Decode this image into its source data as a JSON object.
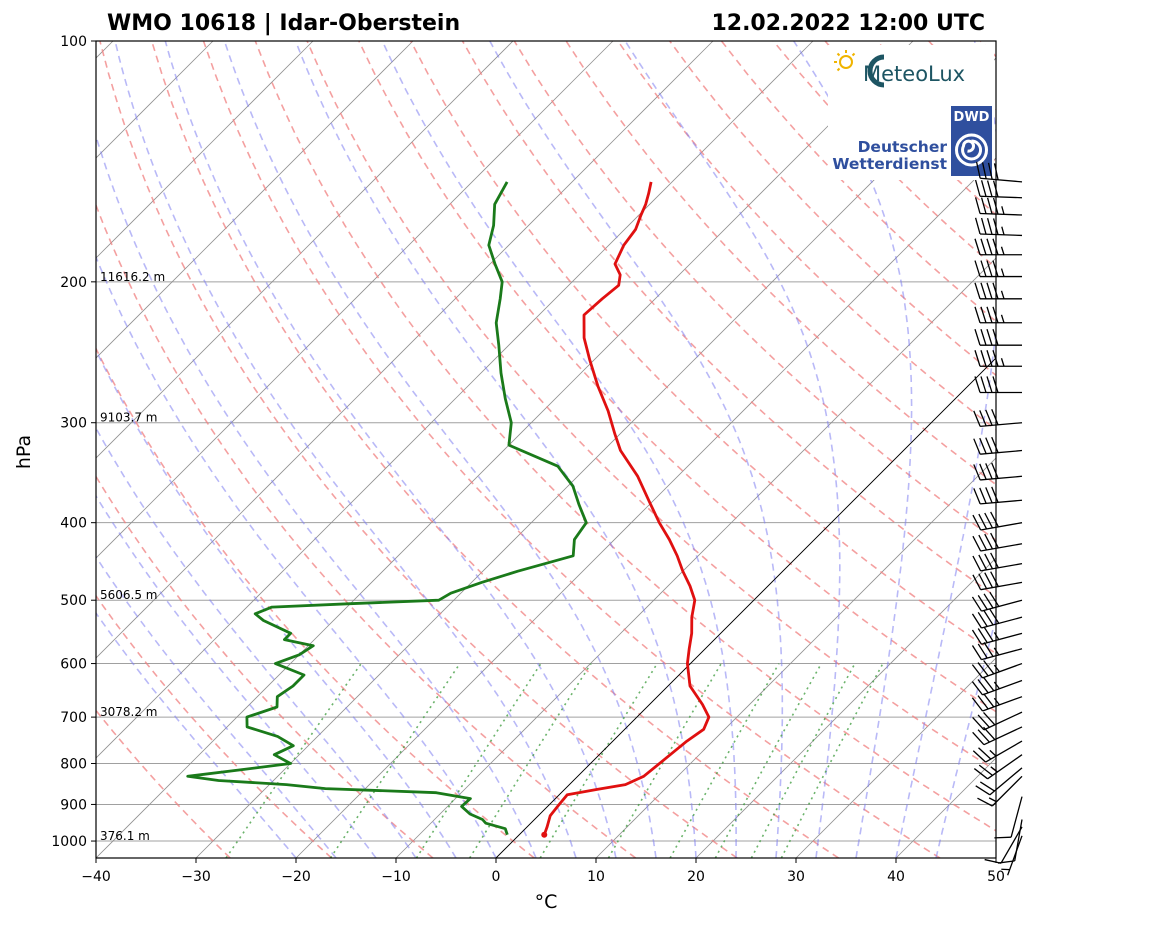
{
  "header": {
    "station": "WMO 10618 | Idar-Oberstein",
    "datetime": "12.02.2022 12:00 UTC"
  },
  "logos": {
    "meteolux": "MeteoLux",
    "dwd_badge": "DWD",
    "dwd_line1": "Deutscher",
    "dwd_line2": "Wetterdienst"
  },
  "chart_data": {
    "type": "line",
    "title": "WMO 10618 | Idar-Oberstein",
    "subtitle": "12.02.2022 12:00 UTC",
    "xlabel": "°C",
    "ylabel": "hPa",
    "xlim": [
      -40,
      50
    ],
    "ylim": [
      1050,
      100
    ],
    "y_scale": "log",
    "skew": true,
    "grid": true,
    "x_ticks": [
      -40,
      -30,
      -20,
      -10,
      0,
      10,
      20,
      30,
      40,
      50
    ],
    "x_tick_labels": [
      "−40",
      "−30",
      "−20",
      "−10",
      "0",
      "10",
      "20",
      "30",
      "40",
      "50"
    ],
    "y_ticks": [
      100,
      200,
      300,
      400,
      500,
      600,
      700,
      800,
      900,
      1000
    ],
    "y_tick_labels": [
      "100",
      "200",
      "300",
      "400",
      "500",
      "600",
      "700",
      "800",
      "900",
      "1000"
    ],
    "height_labels": [
      {
        "p": 200,
        "text": "11616.2 m"
      },
      {
        "p": 300,
        "text": "9103.7 m"
      },
      {
        "p": 500,
        "text": "5606.5 m"
      },
      {
        "p": 700,
        "text": "3078.2 m"
      },
      {
        "p": 1000,
        "text": "376.1 m"
      }
    ],
    "series": [
      {
        "name": "Temperature",
        "color": "#e01010",
        "points": [
          [
            982,
            2.5
          ],
          [
            960,
            2.0
          ],
          [
            930,
            1.2
          ],
          [
            905,
            1.0
          ],
          [
            875,
            0.8
          ],
          [
            862,
            3.2
          ],
          [
            850,
            5.6
          ],
          [
            830,
            6.6
          ],
          [
            790,
            7.0
          ],
          [
            750,
            7.4
          ],
          [
            725,
            7.9
          ],
          [
            700,
            7.2
          ],
          [
            675,
            5.3
          ],
          [
            640,
            2.2
          ],
          [
            600,
            -0.3
          ],
          [
            575,
            -1.6
          ],
          [
            550,
            -2.9
          ],
          [
            525,
            -4.5
          ],
          [
            500,
            -5.9
          ],
          [
            480,
            -7.8
          ],
          [
            460,
            -10.0
          ],
          [
            440,
            -12.1
          ],
          [
            420,
            -14.5
          ],
          [
            400,
            -17.2
          ],
          [
            375,
            -20.5
          ],
          [
            350,
            -24.0
          ],
          [
            325,
            -28.3
          ],
          [
            310,
            -30.5
          ],
          [
            290,
            -33.5
          ],
          [
            270,
            -37.0
          ],
          [
            250,
            -40.5
          ],
          [
            235,
            -43.2
          ],
          [
            220,
            -45.5
          ],
          [
            210,
            -45.3
          ],
          [
            202,
            -45.0
          ],
          [
            196,
            -45.9
          ],
          [
            190,
            -47.5
          ],
          [
            180,
            -48.5
          ],
          [
            172,
            -48.9
          ],
          [
            165,
            -49.8
          ],
          [
            160,
            -50.4
          ],
          [
            155,
            -51.2
          ],
          [
            150,
            -52.1
          ]
        ]
      },
      {
        "name": "Dewpoint",
        "color": "#1a7a1a",
        "points": [
          [
            982,
            -1.2
          ],
          [
            965,
            -2.0
          ],
          [
            950,
            -4.5
          ],
          [
            940,
            -5.2
          ],
          [
            925,
            -7.0
          ],
          [
            905,
            -8.6
          ],
          [
            885,
            -8.5
          ],
          [
            870,
            -12.5
          ],
          [
            860,
            -24.0
          ],
          [
            850,
            -28.3
          ],
          [
            840,
            -35.5
          ],
          [
            830,
            -39.0
          ],
          [
            815,
            -34.5
          ],
          [
            800,
            -30.0
          ],
          [
            780,
            -32.5
          ],
          [
            760,
            -31.5
          ],
          [
            740,
            -34.0
          ],
          [
            720,
            -38.0
          ],
          [
            700,
            -39.0
          ],
          [
            680,
            -37.0
          ],
          [
            660,
            -38.0
          ],
          [
            640,
            -37.5
          ],
          [
            620,
            -37.5
          ],
          [
            600,
            -41.5
          ],
          [
            585,
            -40.0
          ],
          [
            570,
            -39.5
          ],
          [
            560,
            -43.0
          ],
          [
            550,
            -43.0
          ],
          [
            530,
            -47.0
          ],
          [
            520,
            -48.5
          ],
          [
            510,
            -47.5
          ],
          [
            505,
            -40.0
          ],
          [
            500,
            -31.5
          ],
          [
            490,
            -31.0
          ],
          [
            475,
            -29.0
          ],
          [
            460,
            -26.5
          ],
          [
            440,
            -22.5
          ],
          [
            420,
            -24.0
          ],
          [
            400,
            -24.5
          ],
          [
            380,
            -27.0
          ],
          [
            360,
            -29.5
          ],
          [
            340,
            -33.0
          ],
          [
            320,
            -40.0
          ],
          [
            300,
            -42.0
          ],
          [
            280,
            -45.0
          ],
          [
            260,
            -48.0
          ],
          [
            240,
            -51.0
          ],
          [
            225,
            -53.5
          ],
          [
            210,
            -55.5
          ],
          [
            200,
            -57.0
          ],
          [
            190,
            -59.5
          ],
          [
            180,
            -62.0
          ],
          [
            170,
            -63.5
          ],
          [
            160,
            -65.5
          ],
          [
            150,
            -66.5
          ]
        ]
      }
    ],
    "wind_barbs": [
      {
        "p": 985,
        "dir": 200,
        "kt": 5
      },
      {
        "p": 960,
        "dir": 210,
        "kt": 10
      },
      {
        "p": 940,
        "dir": 190,
        "kt": 10
      },
      {
        "p": 880,
        "dir": 195,
        "kt": 10
      },
      {
        "p": 830,
        "dir": 225,
        "kt": 15
      },
      {
        "p": 810,
        "dir": 230,
        "kt": 20
      },
      {
        "p": 780,
        "dir": 235,
        "kt": 25
      },
      {
        "p": 750,
        "dir": 240,
        "kt": 25
      },
      {
        "p": 720,
        "dir": 245,
        "kt": 30
      },
      {
        "p": 690,
        "dir": 245,
        "kt": 30
      },
      {
        "p": 660,
        "dir": 250,
        "kt": 35
      },
      {
        "p": 630,
        "dir": 250,
        "kt": 35
      },
      {
        "p": 600,
        "dir": 250,
        "kt": 35
      },
      {
        "p": 575,
        "dir": 255,
        "kt": 35
      },
      {
        "p": 550,
        "dir": 255,
        "kt": 35
      },
      {
        "p": 525,
        "dir": 255,
        "kt": 40
      },
      {
        "p": 500,
        "dir": 255,
        "kt": 40
      },
      {
        "p": 475,
        "dir": 260,
        "kt": 40
      },
      {
        "p": 450,
        "dir": 260,
        "kt": 40
      },
      {
        "p": 425,
        "dir": 260,
        "kt": 40
      },
      {
        "p": 400,
        "dir": 260,
        "kt": 40
      },
      {
        "p": 375,
        "dir": 265,
        "kt": 40
      },
      {
        "p": 350,
        "dir": 265,
        "kt": 40
      },
      {
        "p": 325,
        "dir": 265,
        "kt": 40
      },
      {
        "p": 300,
        "dir": 265,
        "kt": 40
      },
      {
        "p": 275,
        "dir": 270,
        "kt": 40
      },
      {
        "p": 255,
        "dir": 270,
        "kt": 45
      },
      {
        "p": 240,
        "dir": 270,
        "kt": 40
      },
      {
        "p": 225,
        "dir": 270,
        "kt": 45
      },
      {
        "p": 210,
        "dir": 270,
        "kt": 45
      },
      {
        "p": 197,
        "dir": 270,
        "kt": 45
      },
      {
        "p": 185,
        "dir": 270,
        "kt": 45
      },
      {
        "p": 175,
        "dir": 272,
        "kt": 45
      },
      {
        "p": 165,
        "dir": 272,
        "kt": 45
      },
      {
        "p": 157,
        "dir": 272,
        "kt": 40
      },
      {
        "p": 150,
        "dir": 275,
        "kt": 40
      }
    ]
  },
  "colors": {
    "temperature": "#e01010",
    "dewpoint": "#1a7a1a",
    "dry_adiabat": "#f08080",
    "moist_adiabat": "#8080f0",
    "mixing_ratio": "#3a9a3a",
    "isotherm": "#909090",
    "isobar": "#a0a0a0"
  }
}
